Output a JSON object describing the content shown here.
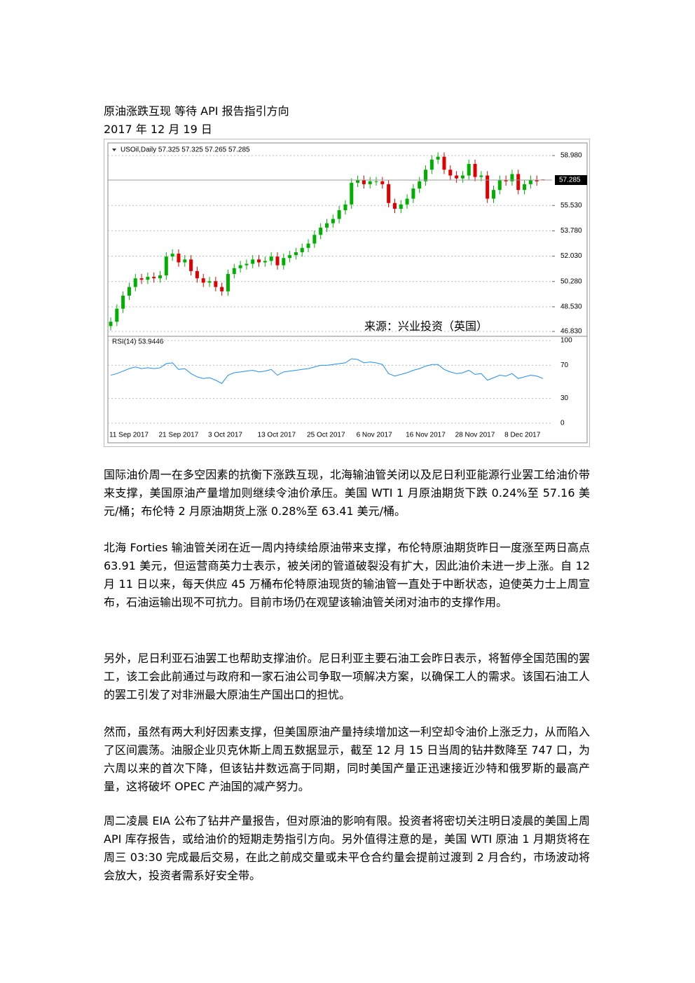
{
  "document": {
    "title": "原油涨跌互现  等待 API 报告指引方向",
    "date": "2017 年 12 月 19 日",
    "paragraphs": [
      "国际油价周一在多空因素的抗衡下涨跌互现，北海输油管关闭以及尼日利亚能源行业罢工给油价带来支撑，美国原油产量增加则继续令油价承压。美国 WTI 1 月原油期货下跌 0.24%至 57.16 美元/桶；布伦特 2 月原油期货上涨 0.28%至 63.41 美元/桶。",
      "北海 Forties 输油管关闭在近一周内持续给原油带来支撑，布伦特原油期货昨日一度涨至两日高点 63.91 美元，但运营商英力士表示，被关闭的管道破裂没有扩大，因此油价未进一步上涨。自 12 月 11 日以来，每天供应 45 万桶布伦特原油现货的输油管一直处于中断状态，迫使英力士上周宣布，石油运输出现不可抗力。目前市场仍在观望该输油管关闭对油市的支撑作用。",
      "另外，尼日利亚石油罢工也帮助支撑油价。尼日利亚主要石油工会昨日表示，将暂停全国范围的罢工，该工会此前通过与政府和一家石油公司争取一项解决方案，以确保工人的需求。该国石油工人的罢工引发了对非洲最大原油生产国出口的担忧。",
      "然而，虽然有两大利好因素支撑，但美国原油产量持续增加这一利空却令油价上涨乏力，从而陷入了区间震荡。油服企业贝克休斯上周五数据显示，截至 12 月 15 日当周的钻井数降至 747 口，为六周以来的首次下降，但该钻井数远高于同期，同时美国产量正迅速接近沙特和俄罗斯的最高产量，这将破坏 OPEC 产油国的减产努力。",
      "周二凌晨 EIA 公布了钻井产量报告，但对原油的影响有限。投资者将密切关注明日凌晨的美国上周 API 库存报告，或给油价的短期走势指引方向。另外值得注意的是，美国 WTI 原油 1 月期货将在周三 03:30 完成最后交易，在此之前成交量或未平仓合约量会提前过渡到 2 月合约，市场波动将会放大，投资者需系好安全带。"
    ]
  },
  "chart_data": {
    "type": "candlestick",
    "legend": "USOil,Daily 57.325 57.325 57.265 57.285",
    "source": "来源：兴业投资（英国）",
    "categories": [
      "11 Sep 2017",
      null,
      null,
      null,
      null,
      null,
      null,
      null,
      "21 Sep 2017",
      null,
      null,
      null,
      null,
      null,
      null,
      null,
      "3 Oct 2017",
      null,
      null,
      null,
      null,
      null,
      null,
      null,
      "13 Oct 2017",
      null,
      null,
      null,
      null,
      null,
      null,
      null,
      "25 Oct 2017",
      null,
      null,
      null,
      null,
      null,
      null,
      null,
      "6 Nov 2017",
      null,
      null,
      null,
      null,
      null,
      null,
      null,
      "16 Nov 2017",
      null,
      null,
      null,
      null,
      null,
      null,
      null,
      "28 Nov 2017",
      null,
      null,
      null,
      null,
      null,
      null,
      null,
      "8 Dec 2017",
      null,
      null,
      null,
      null,
      null,
      null
    ],
    "open": [
      47.2,
      47.5,
      48.4,
      49.3,
      49.9,
      50.5,
      50.4,
      50.6,
      50.5,
      50.7,
      52.0,
      52.2,
      51.6,
      51.8,
      51.0,
      50.5,
      50.2,
      50.3,
      49.9,
      49.6,
      50.8,
      51.2,
      51.4,
      51.5,
      51.8,
      51.6,
      51.7,
      52.0,
      51.4,
      51.9,
      52.1,
      52.3,
      52.6,
      52.9,
      53.5,
      54.0,
      54.3,
      54.6,
      55.2,
      55.6,
      57.1,
      57.3,
      57.0,
      57.2,
      57.2,
      57.0,
      55.7,
      55.3,
      55.6,
      56.0,
      56.7,
      57.2,
      58.0,
      58.7,
      58.9,
      58.0,
      57.6,
      57.4,
      57.6,
      58.4,
      57.5,
      57.6,
      56.0,
      56.6,
      57.3,
      57.2,
      57.7,
      56.6,
      57.0,
      57.3,
      57.325
    ],
    "high": [
      47.8,
      48.7,
      49.6,
      50.2,
      50.8,
      50.8,
      50.9,
      50.9,
      51.0,
      52.3,
      52.5,
      52.5,
      52.1,
      52.1,
      51.3,
      50.8,
      50.6,
      50.6,
      50.2,
      51.1,
      51.5,
      51.7,
      51.8,
      52.1,
      52.1,
      52.0,
      52.3,
      52.3,
      52.2,
      52.4,
      52.6,
      52.9,
      53.2,
      53.8,
      54.3,
      54.6,
      54.9,
      55.5,
      55.9,
      57.4,
      57.6,
      57.6,
      57.5,
      57.5,
      57.5,
      57.3,
      56.0,
      55.9,
      56.3,
      57.0,
      57.5,
      58.3,
      59.0,
      59.2,
      59.2,
      58.3,
      57.9,
      57.9,
      58.7,
      58.7,
      57.9,
      57.9,
      56.9,
      57.6,
      57.6,
      58.0,
      58.0,
      57.3,
      57.6,
      57.6,
      57.325
    ],
    "low": [
      46.9,
      47.2,
      48.1,
      49.0,
      49.6,
      50.1,
      50.1,
      50.2,
      50.2,
      50.4,
      51.7,
      51.3,
      51.3,
      50.7,
      50.2,
      49.9,
      49.9,
      49.6,
      49.3,
      49.3,
      50.5,
      50.9,
      51.1,
      51.2,
      51.3,
      51.3,
      51.4,
      51.1,
      51.1,
      51.6,
      51.8,
      52.0,
      52.3,
      52.6,
      53.2,
      53.7,
      54.0,
      54.3,
      54.9,
      55.3,
      56.8,
      56.7,
      56.7,
      56.9,
      56.7,
      55.4,
      55.0,
      55.0,
      55.3,
      55.7,
      56.4,
      56.9,
      57.7,
      58.4,
      57.7,
      57.3,
      57.1,
      57.1,
      57.3,
      57.2,
      57.2,
      55.7,
      55.7,
      56.3,
      56.9,
      56.9,
      56.3,
      56.3,
      56.7,
      56.9,
      57.265
    ],
    "close": [
      47.5,
      48.4,
      49.3,
      49.9,
      50.5,
      50.4,
      50.6,
      50.5,
      50.7,
      52.0,
      52.2,
      51.6,
      51.8,
      51.0,
      50.5,
      50.2,
      50.3,
      49.9,
      49.6,
      50.8,
      51.2,
      51.4,
      51.5,
      51.8,
      51.6,
      51.7,
      52.0,
      51.4,
      51.9,
      52.1,
      52.3,
      52.6,
      52.9,
      53.5,
      54.0,
      54.3,
      54.6,
      55.2,
      55.6,
      57.1,
      57.3,
      57.0,
      57.2,
      57.2,
      57.0,
      55.7,
      55.3,
      55.6,
      56.0,
      56.7,
      57.2,
      58.0,
      58.7,
      58.9,
      58.0,
      57.6,
      57.4,
      57.6,
      58.4,
      57.5,
      57.6,
      56.0,
      56.6,
      57.3,
      57.2,
      57.7,
      56.6,
      57.0,
      57.3,
      57.2,
      57.285
    ],
    "up_color": "#00b000",
    "down_color": "#e00000",
    "ylim": [
      46.59,
      59.85
    ],
    "yticks": [
      {
        "value": 58.98,
        "label": "58.980"
      },
      {
        "value": 55.53,
        "label": "55.530"
      },
      {
        "value": 53.78,
        "label": "53.780"
      },
      {
        "value": 52.03,
        "label": "52.030"
      },
      {
        "value": 50.28,
        "label": "50.280"
      },
      {
        "value": 48.53,
        "label": "48.530"
      },
      {
        "value": 46.83,
        "label": "46.830"
      }
    ],
    "grid": true,
    "indicator": {
      "type": "line",
      "label": "RSI(14) 53.9446",
      "color": "#1e90ff",
      "values": [
        58,
        60,
        63,
        66,
        68,
        66,
        67,
        66,
        67,
        72,
        73,
        65,
        66,
        60,
        56,
        54,
        55,
        52,
        48,
        58,
        61,
        62,
        63,
        64,
        62,
        63,
        65,
        58,
        62,
        63,
        64,
        65,
        66,
        68,
        70,
        70,
        71,
        72,
        73,
        78,
        77,
        73,
        74,
        73,
        71,
        60,
        57,
        59,
        61,
        64,
        66,
        69,
        71,
        71,
        65,
        62,
        60,
        61,
        64,
        59,
        60,
        52,
        55,
        58,
        57,
        60,
        54,
        56,
        58,
        57,
        53.9446
      ],
      "ylim": [
        0,
        100
      ],
      "yticks": [
        100,
        70,
        30,
        0
      ]
    }
  }
}
